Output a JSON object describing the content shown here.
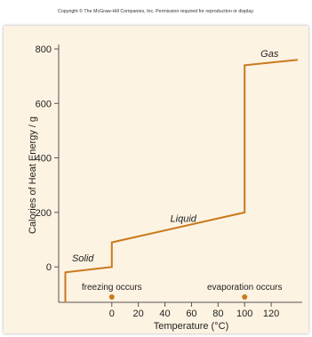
{
  "copyright": "Copyright © The McGraw-Hill Companies, Inc. Permission required for reproduction or display.",
  "chart_data": {
    "type": "line",
    "xlabel": "Temperature (°C)",
    "ylabel": "Calories of Heat Energy / g",
    "xlim": [
      -40,
      140
    ],
    "ylim": [
      -130,
      800
    ],
    "xticks": [
      0,
      20,
      40,
      60,
      80,
      100,
      120
    ],
    "yticks": [
      0,
      200,
      400,
      600,
      800
    ],
    "grid": false,
    "line_color": "#c97a1d",
    "points": [
      {
        "x": -35,
        "y": -130
      },
      {
        "x": -35,
        "y": -20
      },
      {
        "x": 0,
        "y": 0
      },
      {
        "x": 0,
        "y": 90
      },
      {
        "x": 100,
        "y": 200
      },
      {
        "x": 100,
        "y": 740
      },
      {
        "x": 140,
        "y": 760
      }
    ],
    "region_labels": [
      {
        "text": "Solid",
        "x": -30,
        "y": 20
      },
      {
        "text": "Liquid",
        "x": 44,
        "y": 165
      },
      {
        "text": "Gas",
        "x": 112,
        "y": 770
      }
    ],
    "events": [
      {
        "text": "freezing occurs",
        "x": 0
      },
      {
        "text": "evaporation occurs",
        "x": 100
      }
    ]
  }
}
